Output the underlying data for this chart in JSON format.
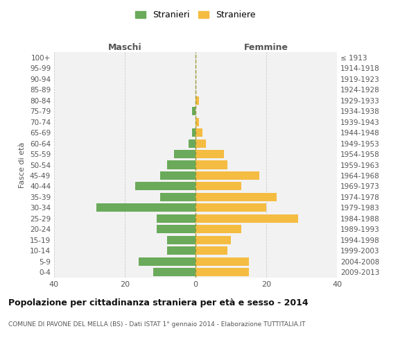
{
  "age_groups": [
    "0-4",
    "5-9",
    "10-14",
    "15-19",
    "20-24",
    "25-29",
    "30-34",
    "35-39",
    "40-44",
    "45-49",
    "50-54",
    "55-59",
    "60-64",
    "65-69",
    "70-74",
    "75-79",
    "80-84",
    "85-89",
    "90-94",
    "95-99",
    "100+"
  ],
  "birth_years": [
    "2009-2013",
    "2004-2008",
    "1999-2003",
    "1994-1998",
    "1989-1993",
    "1984-1988",
    "1979-1983",
    "1974-1978",
    "1969-1973",
    "1964-1968",
    "1959-1963",
    "1954-1958",
    "1949-1953",
    "1944-1948",
    "1939-1943",
    "1934-1938",
    "1929-1933",
    "1924-1928",
    "1919-1923",
    "1914-1918",
    "≤ 1913"
  ],
  "maschi": [
    12,
    16,
    8,
    8,
    11,
    11,
    28,
    10,
    17,
    10,
    8,
    6,
    2,
    1,
    0,
    1,
    0,
    0,
    0,
    0,
    0
  ],
  "femmine": [
    15,
    15,
    9,
    10,
    13,
    29,
    20,
    23,
    13,
    18,
    9,
    8,
    3,
    2,
    1,
    0,
    1,
    0,
    0,
    0,
    0
  ],
  "male_color": "#6aaa5a",
  "female_color": "#f5bc42",
  "bg_color": "#ffffff",
  "plot_bg_color": "#f2f2f2",
  "grid_color": "#cccccc",
  "center_line_color": "#999933",
  "title": "Popolazione per cittadinanza straniera per età e sesso - 2014",
  "subtitle": "COMUNE DI PAVONE DEL MELLA (BS) - Dati ISTAT 1° gennaio 2014 - Elaborazione TUTTITALIA.IT",
  "ylabel_left": "Fasce di età",
  "xlabel_left": "Maschi",
  "xlabel_right": "Femmine",
  "legend_maschi": "Stranieri",
  "legend_femmine": "Straniere",
  "xlim": 40,
  "bar_height": 0.78
}
